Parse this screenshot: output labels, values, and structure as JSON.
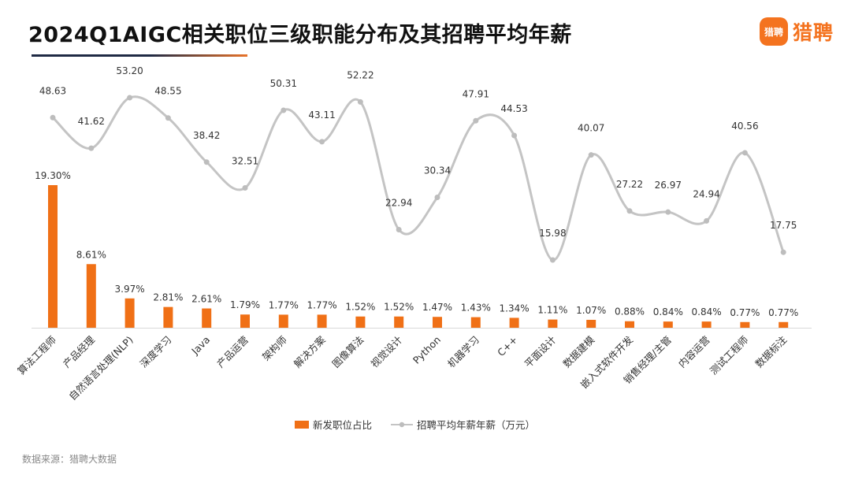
{
  "header": {
    "title": "2024Q1AIGC相关职位三级职能分布及其招聘平均年薪",
    "logo_mark": "猎聘",
    "logo_text": "猎聘"
  },
  "footer": {
    "source": "数据来源：猎聘大数据"
  },
  "colors": {
    "bar": "#f07016",
    "line": "#c4c4c4",
    "line_point": "#bdbdbd",
    "brand": "#f4731f"
  },
  "chart_data": {
    "type": "bar+line",
    "categories": [
      "算法工程师",
      "产品经理",
      "自然语言处理(NLP)",
      "深度学习",
      "Java",
      "产品运营",
      "架构师",
      "解决方案",
      "图像算法",
      "视觉设计",
      "Python",
      "机器学习",
      "C++",
      "平面设计",
      "数据建模",
      "嵌入式软件开发",
      "销售经理/主管",
      "内容运营",
      "测试工程师",
      "数据标注"
    ],
    "series": [
      {
        "name": "新发职位占比",
        "type": "bar",
        "values": [
          19.3,
          8.61,
          3.97,
          2.81,
          2.61,
          1.79,
          1.77,
          1.77,
          1.52,
          1.52,
          1.47,
          1.43,
          1.34,
          1.11,
          1.07,
          0.88,
          0.84,
          0.84,
          0.77,
          0.77
        ],
        "labels": [
          "19.30%",
          "8.61%",
          "3.97%",
          "2.81%",
          "2.61%",
          "1.79%",
          "1.77%",
          "1.77%",
          "1.52%",
          "1.52%",
          "1.47%",
          "1.43%",
          "1.34%",
          "1.11%",
          "1.07%",
          "0.88%",
          "0.84%",
          "0.84%",
          "0.77%",
          "0.77%"
        ],
        "unit": "%"
      },
      {
        "name": "招聘平均年薪年薪（万元）",
        "type": "line",
        "smooth": true,
        "values": [
          48.63,
          41.62,
          53.2,
          48.55,
          38.42,
          32.51,
          50.31,
          43.11,
          52.22,
          22.94,
          30.34,
          47.91,
          44.53,
          15.98,
          40.07,
          27.22,
          26.97,
          24.94,
          40.56,
          17.75
        ],
        "labels": [
          "48.63",
          "41.62",
          "53.20",
          "48.55",
          "38.42",
          "32.51",
          "50.31",
          "43.11",
          "52.22",
          "22.94",
          "30.34",
          "47.91",
          "44.53",
          "15.98",
          "40.07",
          "27.22",
          "26.97",
          "24.94",
          "40.56",
          "17.75"
        ]
      }
    ],
    "legend_position": "bottom-center",
    "grid": false
  }
}
